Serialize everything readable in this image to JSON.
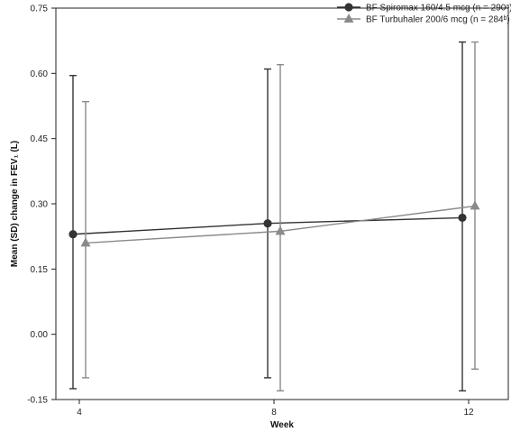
{
  "chart_data": {
    "type": "line",
    "title": "",
    "xlabel": "Week",
    "ylabel": "Mean (SD) change in FEV₁ (L)",
    "x": [
      4,
      8,
      12
    ],
    "x_tick_labels": [
      "4",
      "8",
      "12"
    ],
    "ylim": [
      -0.15,
      0.75
    ],
    "y_ticks": [
      -0.15,
      0.0,
      0.15,
      0.3,
      0.45,
      0.6,
      0.75
    ],
    "y_tick_labels": [
      "-0.15",
      "0.00",
      "0.15",
      "0.30",
      "0.45",
      "0.60",
      "0.75"
    ],
    "grid": false,
    "legend_position": "top-right",
    "series": [
      {
        "name": "BF Spiromax 160/4.5 mcg (n = 290ᵃ)",
        "marker": "circle",
        "color": "#333333",
        "values": [
          0.23,
          0.255,
          0.268
        ],
        "error_low": [
          -0.125,
          -0.1,
          -0.13
        ],
        "error_high": [
          0.595,
          0.61,
          0.672
        ]
      },
      {
        "name": "BF Turbuhaler 200/6 mcg (n = 284ᵇ)",
        "marker": "triangle",
        "color": "#8a8a8a",
        "values": [
          0.21,
          0.237,
          0.295
        ],
        "error_low": [
          -0.1,
          -0.13,
          -0.08
        ],
        "error_high": [
          0.535,
          0.62,
          0.672
        ]
      }
    ]
  }
}
